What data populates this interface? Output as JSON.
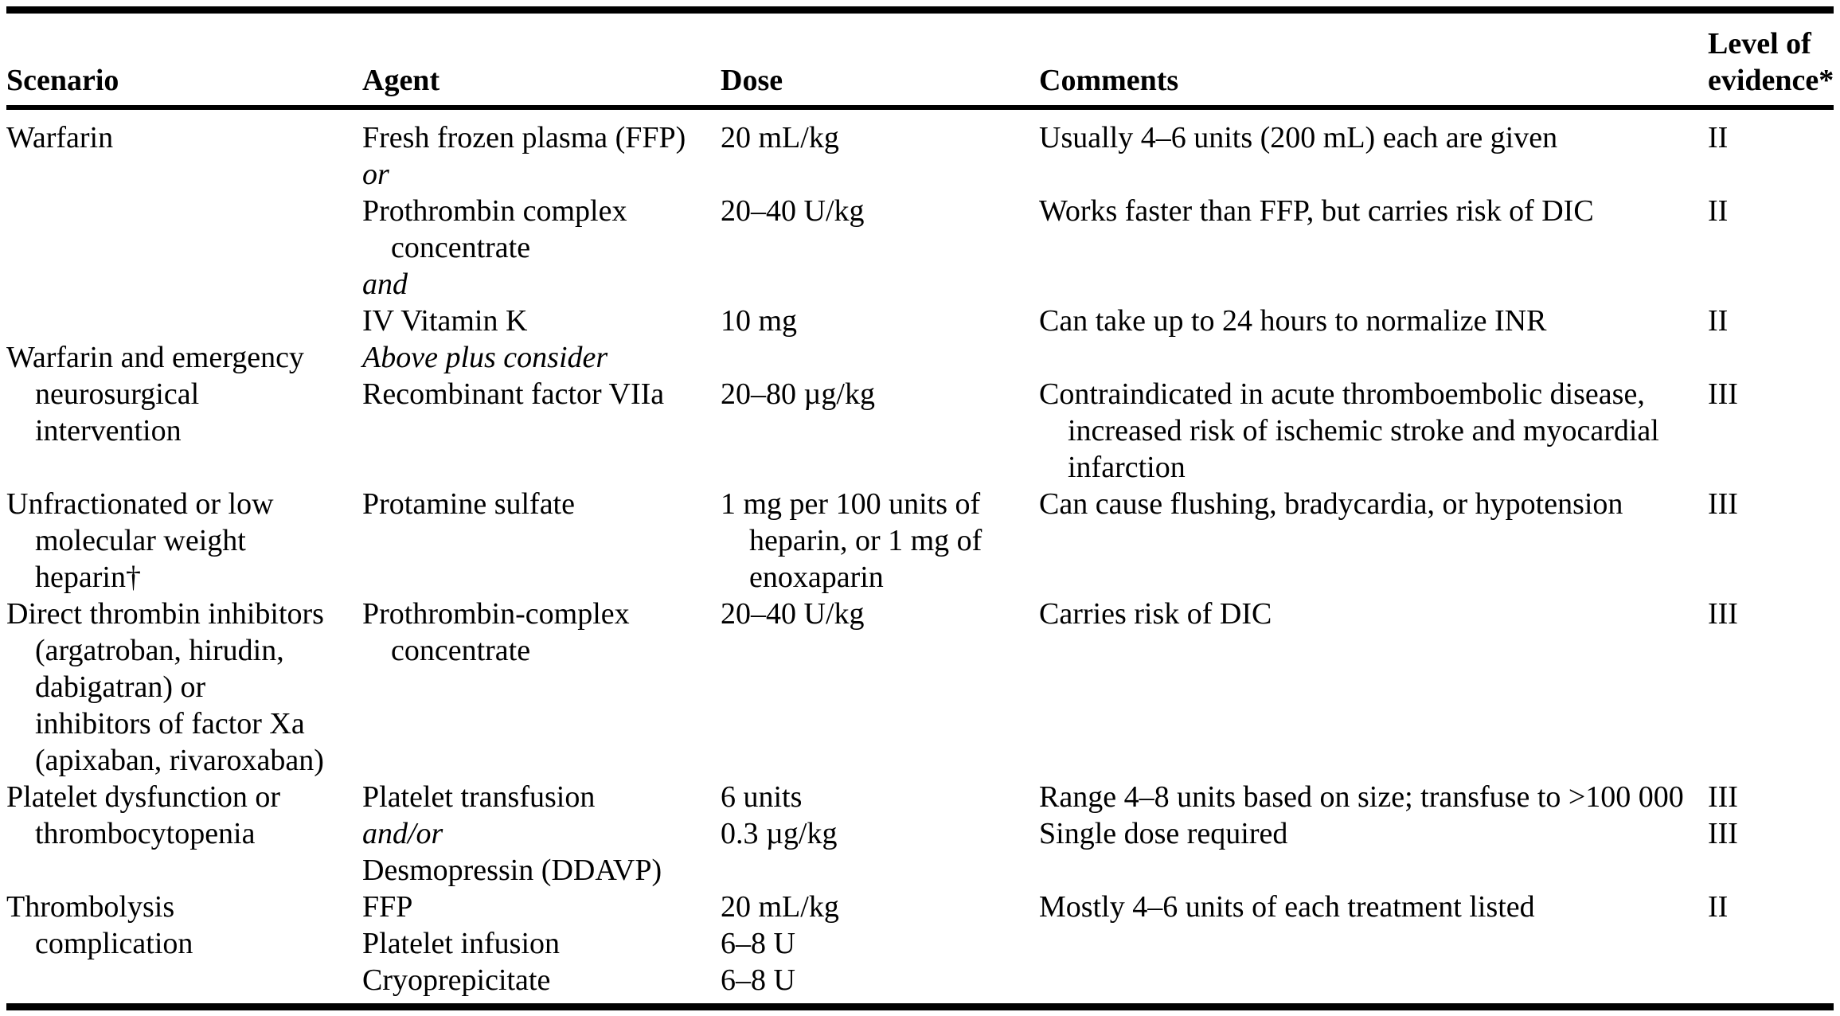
{
  "colors": {
    "background": "#ffffff",
    "text": "#000000",
    "rule": "#000000"
  },
  "table": {
    "header": {
      "scenario": "Scenario",
      "agent": "Agent",
      "dose": "Dose",
      "comments": "Comments",
      "level_line1": "Level of",
      "level_line2": "evidence*"
    },
    "column_keys": [
      "scenario",
      "agent",
      "dose",
      "comments",
      "level"
    ],
    "rows": [
      {
        "scenario": [
          {
            "t": "Warfarin"
          }
        ],
        "agent": [
          {
            "t": "Fresh frozen plasma (FFP)"
          },
          {
            "t": "or",
            "em": true
          },
          {
            "t": "Prothrombin complex"
          },
          {
            "t": "concentrate",
            "ind": true
          },
          {
            "t": "and",
            "em": true
          },
          {
            "t": "IV Vitamin K"
          }
        ],
        "dose": [
          {
            "t": "20 mL/kg"
          },
          {
            "t": ""
          },
          {
            "t": "20–40 U/kg"
          },
          {
            "t": ""
          },
          {
            "t": ""
          },
          {
            "t": "10 mg"
          }
        ],
        "comments": [
          {
            "t": "Usually 4–6 units (200 mL) each are given"
          },
          {
            "t": ""
          },
          {
            "t": "Works faster than FFP, but carries risk of DIC"
          },
          {
            "t": ""
          },
          {
            "t": ""
          },
          {
            "t": "Can take up to 24 hours to normalize INR"
          }
        ],
        "level": [
          {
            "t": "II"
          },
          {
            "t": ""
          },
          {
            "t": "II"
          },
          {
            "t": ""
          },
          {
            "t": ""
          },
          {
            "t": "II"
          }
        ]
      },
      {
        "scenario": [
          {
            "t": "Warfarin and emergency"
          },
          {
            "t": "neurosurgical",
            "ind": true
          },
          {
            "t": "intervention",
            "ind": true
          }
        ],
        "agent": [
          {
            "t": "Above plus consider",
            "em": true
          },
          {
            "t": "Recombinant factor VIIa"
          }
        ],
        "dose": [
          {
            "t": ""
          },
          {
            "t": "20–80 µg/kg"
          }
        ],
        "comments": [
          {
            "t": ""
          },
          {
            "t": "Contraindicated in acute thromboembolic disease,"
          },
          {
            "t": "increased risk of ischemic stroke and myocardial",
            "ind": true
          },
          {
            "t": "infarction",
            "ind": true
          }
        ],
        "level": [
          {
            "t": ""
          },
          {
            "t": "III"
          }
        ]
      },
      {
        "scenario": [
          {
            "t": "Unfractionated or low"
          },
          {
            "t": "molecular weight",
            "ind": true
          },
          {
            "t": "heparin†",
            "ind": true
          }
        ],
        "agent": [
          {
            "t": "Protamine sulfate"
          }
        ],
        "dose": [
          {
            "t": "1 mg per 100 units of"
          },
          {
            "t": "heparin, or 1 mg of",
            "ind": true
          },
          {
            "t": "enoxaparin",
            "ind": true
          }
        ],
        "comments": [
          {
            "t": "Can cause flushing, bradycardia, or hypotension"
          }
        ],
        "level": [
          {
            "t": "III"
          }
        ]
      },
      {
        "scenario": [
          {
            "t": "Direct thrombin inhibitors"
          },
          {
            "t": "(argatroban, hirudin,",
            "ind": true
          },
          {
            "t": "dabigatran) or",
            "ind": true
          },
          {
            "t": "inhibitors of factor Xa",
            "ind": true
          },
          {
            "t": "(apixaban, rivaroxaban)",
            "ind": true
          }
        ],
        "agent": [
          {
            "t": "Prothrombin-complex"
          },
          {
            "t": "concentrate",
            "ind": true
          }
        ],
        "dose": [
          {
            "t": "20–40 U/kg"
          }
        ],
        "comments": [
          {
            "t": "Carries risk of DIC"
          }
        ],
        "level": [
          {
            "t": "III"
          }
        ]
      },
      {
        "scenario": [
          {
            "t": "Platelet dysfunction or"
          },
          {
            "t": "thrombocytopenia",
            "ind": true
          }
        ],
        "agent": [
          {
            "t": "Platelet transfusion"
          },
          {
            "t": "and/or",
            "em": true
          },
          {
            "t": "Desmopressin (DDAVP)"
          }
        ],
        "dose": [
          {
            "t": "6 units"
          },
          {
            "t": "0.3 µg/kg"
          }
        ],
        "comments": [
          {
            "t": "Range 4–8 units based on size; transfuse to >100 000"
          },
          {
            "t": "Single dose required"
          }
        ],
        "level": [
          {
            "t": "III"
          },
          {
            "t": "III"
          }
        ]
      },
      {
        "scenario": [
          {
            "t": "Thrombolysis"
          },
          {
            "t": "complication",
            "ind": true
          }
        ],
        "agent": [
          {
            "t": "FFP"
          },
          {
            "t": "Platelet infusion"
          },
          {
            "t": "Cryoprepicitate"
          }
        ],
        "dose": [
          {
            "t": "20 mL/kg"
          },
          {
            "t": "6–8 U"
          },
          {
            "t": "6–8 U"
          }
        ],
        "comments": [
          {
            "t": "Mostly 4–6 units of each treatment listed"
          }
        ],
        "level": [
          {
            "t": "II"
          }
        ]
      }
    ]
  }
}
